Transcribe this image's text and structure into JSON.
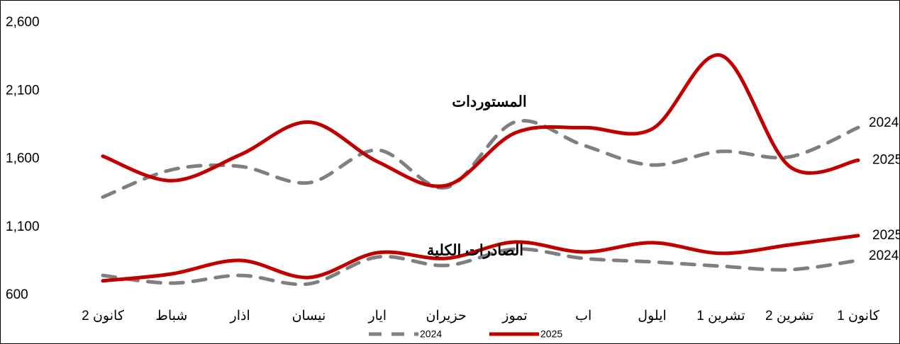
{
  "chart_data": {
    "type": "line",
    "categories": [
      "كانون 2",
      "شباط",
      "اذار",
      "نيسان",
      "ايار",
      "حزيران",
      "تموز",
      "اب",
      "ايلول",
      "تشرين 1",
      "تشرين 2",
      "كانون 1"
    ],
    "series": [
      {
        "name": "2024",
        "color": "#7f7f7f",
        "dashed": true,
        "values": [
          1320,
          1520,
          1545,
          1425,
          1665,
          1390,
          1870,
          1700,
          1555,
          1655,
          1615,
          1830
        ]
      },
      {
        "name": "2025",
        "color": "#c00000",
        "dashed": false,
        "values": [
          1620,
          1440,
          1630,
          1870,
          1580,
          1405,
          1790,
          1830,
          1820,
          2360,
          1545,
          1590
        ]
      },
      {
        "name": "2024",
        "color": "#7f7f7f",
        "dashed": true,
        "values": [
          745,
          688,
          745,
          683,
          880,
          818,
          938,
          870,
          844,
          813,
          787,
          855
        ]
      },
      {
        "name": "2025",
        "color": "#c00000",
        "dashed": false,
        "values": [
          705,
          756,
          855,
          730,
          912,
          870,
          990,
          917,
          985,
          907,
          969,
          1037
        ]
      }
    ],
    "annotations": [
      "المستوردات",
      "الصادرات الكلية"
    ],
    "ylim": [
      600,
      2600
    ],
    "yticks": [
      600,
      {
        "value": 1100,
        "label": "1,100"
      },
      {
        "value": 1600,
        "label": "1,600"
      },
      {
        "value": 2100,
        "label": "2,100"
      },
      {
        "value": 2600,
        "label": "2,600"
      }
    ],
    "legend": "bottom"
  }
}
